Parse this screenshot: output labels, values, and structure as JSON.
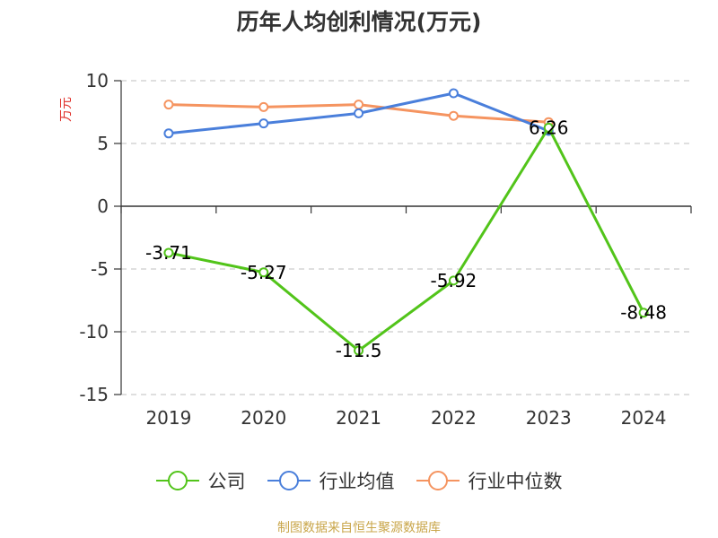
{
  "chart_data": {
    "type": "line",
    "title": "历年人均创利情况(万元)",
    "ylabel": "万元",
    "xlabel": "",
    "categories": [
      "2019",
      "2020",
      "2021",
      "2022",
      "2023",
      "2024"
    ],
    "ylim": [
      -15,
      10
    ],
    "yticks": [
      10,
      5,
      0,
      -5,
      -10,
      -15
    ],
    "grid": true,
    "legend_position": "bottom",
    "series": [
      {
        "name": "公司",
        "color": "#52c41a",
        "values": [
          -3.71,
          -5.27,
          -11.5,
          -5.92,
          6.26,
          -8.48
        ],
        "labels": [
          "-3.71",
          "-5.27",
          "-11.5",
          "-5.92",
          "6.26",
          "-8.48"
        ]
      },
      {
        "name": "行业均值",
        "color": "#4a7fdb",
        "values": [
          5.8,
          6.6,
          7.4,
          9.0,
          6.0,
          null
        ]
      },
      {
        "name": "行业中位数",
        "color": "#f59460",
        "values": [
          8.1,
          7.9,
          8.1,
          7.2,
          6.7,
          null
        ]
      }
    ]
  },
  "source": "制图数据来自恒生聚源数据库"
}
